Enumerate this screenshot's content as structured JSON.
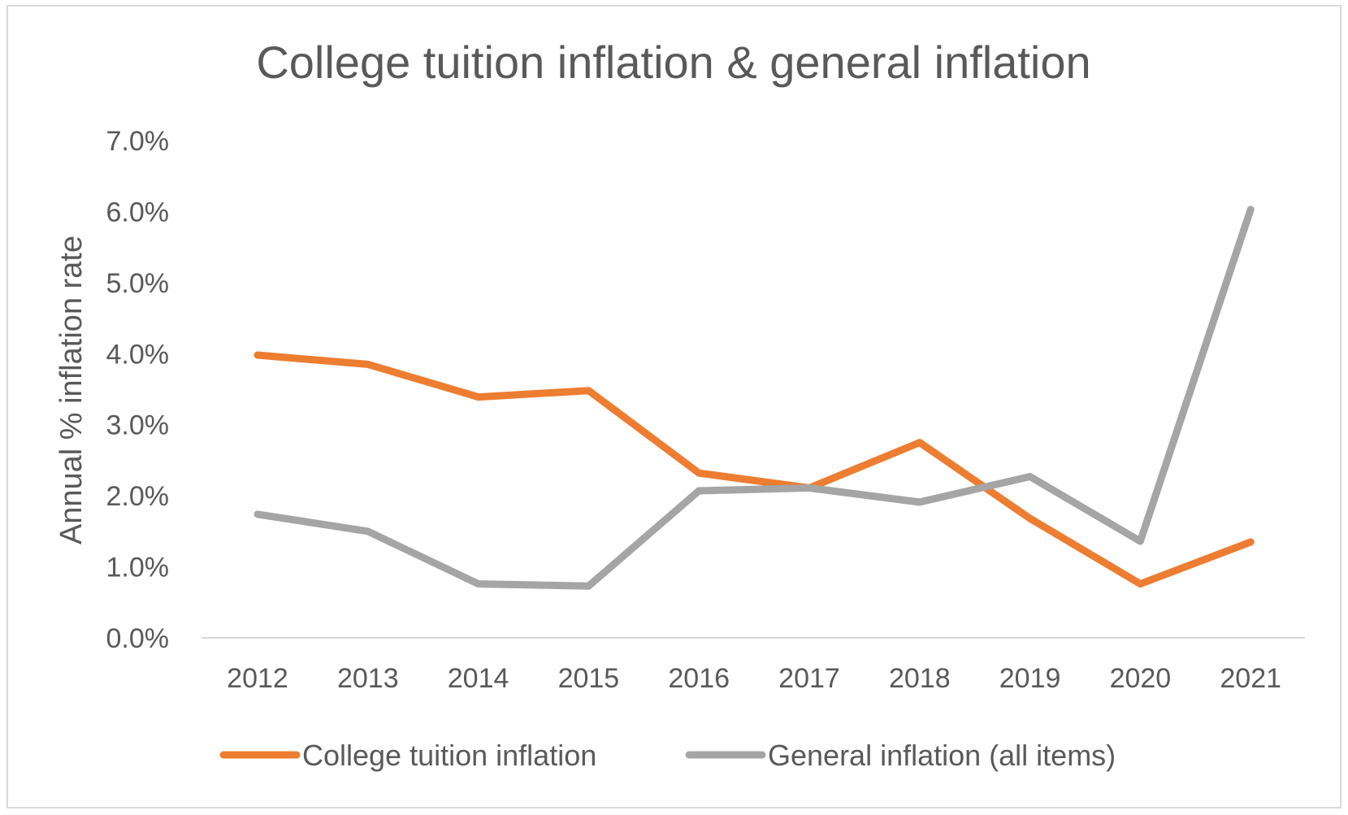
{
  "chart_data": {
    "type": "line",
    "title": "College tuition inflation & general inflation",
    "xlabel": "",
    "ylabel": "Annual % inflation rate",
    "categories": [
      "2012",
      "2013",
      "2014",
      "2015",
      "2016",
      "2017",
      "2018",
      "2019",
      "2020",
      "2021"
    ],
    "y_ticks": [
      "0.0%",
      "1.0%",
      "2.0%",
      "3.0%",
      "4.0%",
      "5.0%",
      "6.0%",
      "7.0%"
    ],
    "ylim": [
      0,
      7
    ],
    "grid": false,
    "legend_position": "bottom",
    "series": [
      {
        "name": "College tuition inflation",
        "color": "#ed7d31",
        "values": [
          3.98,
          3.85,
          3.39,
          3.48,
          2.32,
          2.11,
          2.75,
          1.68,
          0.76,
          1.35
        ]
      },
      {
        "name": "General inflation (all items)",
        "color": "#a5a5a5",
        "values": [
          1.74,
          1.5,
          0.76,
          0.73,
          2.07,
          2.11,
          1.91,
          2.27,
          1.36,
          6.03
        ]
      }
    ]
  }
}
